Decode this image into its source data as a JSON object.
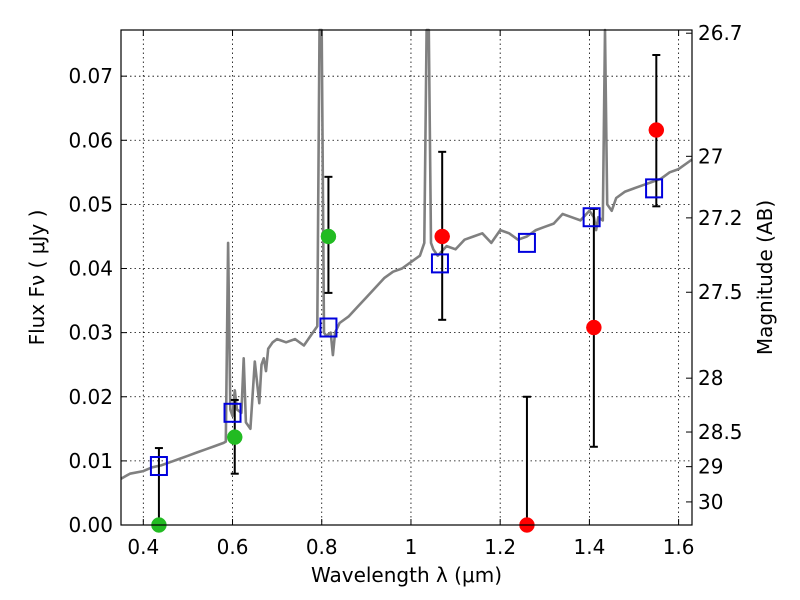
{
  "chart_data": {
    "type": "scatter",
    "title": "",
    "xlabel": "Wavelength  λ (μm)",
    "ylabel": "Flux  Fν ( μJy )",
    "y2label": "Magnitude (AB)",
    "xlim": [
      0.35,
      1.63
    ],
    "ylim": [
      0.0,
      0.0772
    ],
    "grid": true,
    "x_ticks": [
      0.4,
      0.6,
      0.8,
      1.0,
      1.2,
      1.4,
      1.6
    ],
    "x_tick_labels": [
      "0.4",
      "0.6",
      "0.8",
      "1",
      "1.2",
      "1.4",
      "1.6"
    ],
    "y_ticks": [
      0.0,
      0.01,
      0.02,
      0.03,
      0.04,
      0.05,
      0.06,
      0.07
    ],
    "y_tick_labels": [
      "0.00",
      "0.01",
      "0.02",
      "0.03",
      "0.04",
      "0.05",
      "0.06",
      "0.07"
    ],
    "y2_ticks": [
      {
        "label": "26.7",
        "flux": 0.0767
      },
      {
        "label": "27",
        "flux": 0.0575
      },
      {
        "label": "27.2",
        "flux": 0.0479
      },
      {
        "label": "27.5",
        "flux": 0.0363
      },
      {
        "label": "28",
        "flux": 0.0229
      },
      {
        "label": "28.5",
        "flux": 0.0145
      },
      {
        "label": "29",
        "flux": 0.0091
      },
      {
        "label": "30",
        "flux": 0.0036
      }
    ],
    "colors": {
      "spectrum": "#808080",
      "model": "#0000dd",
      "observed_green": "#22bb22",
      "observed_red": "#ff0000",
      "errorbar": "#000000"
    },
    "series": [
      {
        "kind": "spectrum",
        "x": [
          0.35,
          0.37,
          0.4,
          0.42,
          0.44,
          0.46,
          0.48,
          0.5,
          0.52,
          0.54,
          0.56,
          0.58,
          0.585,
          0.59,
          0.595,
          0.6,
          0.605,
          0.61,
          0.62,
          0.625,
          0.63,
          0.64,
          0.65,
          0.66,
          0.665,
          0.67,
          0.675,
          0.68,
          0.69,
          0.7,
          0.72,
          0.74,
          0.76,
          0.78,
          0.79,
          0.795,
          0.8,
          0.805,
          0.81,
          0.82,
          0.825,
          0.83,
          0.84,
          0.86,
          0.88,
          0.9,
          0.92,
          0.94,
          0.96,
          0.98,
          1.0,
          1.02,
          1.03,
          1.035,
          1.04,
          1.045,
          1.05,
          1.06,
          1.08,
          1.1,
          1.12,
          1.14,
          1.16,
          1.18,
          1.2,
          1.22,
          1.24,
          1.26,
          1.28,
          1.3,
          1.32,
          1.34,
          1.36,
          1.38,
          1.4,
          1.41,
          1.415,
          1.42,
          1.43,
          1.435,
          1.44,
          1.45,
          1.46,
          1.48,
          1.5,
          1.52,
          1.54,
          1.56,
          1.58,
          1.6,
          1.63
        ],
        "y": [
          0.0072,
          0.008,
          0.0084,
          0.009,
          0.0093,
          0.0098,
          0.0103,
          0.0108,
          0.0113,
          0.0118,
          0.0123,
          0.0128,
          0.013,
          0.044,
          0.018,
          0.017,
          0.021,
          0.018,
          0.0175,
          0.026,
          0.016,
          0.015,
          0.0255,
          0.019,
          0.025,
          0.026,
          0.024,
          0.0275,
          0.0285,
          0.029,
          0.0285,
          0.029,
          0.028,
          0.03,
          0.031,
          0.079,
          0.078,
          0.03,
          0.0295,
          0.03,
          0.0265,
          0.03,
          0.0315,
          0.0325,
          0.034,
          0.0355,
          0.037,
          0.0385,
          0.0395,
          0.04,
          0.041,
          0.042,
          0.044,
          0.079,
          0.079,
          0.044,
          0.043,
          0.042,
          0.0435,
          0.043,
          0.0445,
          0.045,
          0.0455,
          0.044,
          0.046,
          0.0455,
          0.0445,
          0.045,
          0.046,
          0.0465,
          0.047,
          0.0485,
          0.048,
          0.0475,
          0.049,
          0.048,
          0.046,
          0.048,
          0.0475,
          0.079,
          0.05,
          0.049,
          0.051,
          0.052,
          0.0525,
          0.053,
          0.0535,
          0.054,
          0.055,
          0.0555,
          0.057
        ]
      },
      {
        "kind": "model",
        "x": [
          0.435,
          0.6,
          0.815,
          1.065,
          1.26,
          1.405,
          1.545
        ],
        "y": [
          0.0092,
          0.0175,
          0.0308,
          0.0408,
          0.044,
          0.048,
          0.0525
        ]
      },
      {
        "kind": "observed",
        "points": [
          {
            "x": 0.435,
            "y": 0.0,
            "err_low": 0.0,
            "err_high": 0.012,
            "color": "green"
          },
          {
            "x": 0.605,
            "y": 0.0137,
            "err_low": 0.008,
            "err_high": 0.0195,
            "color": "green"
          },
          {
            "x": 0.815,
            "y": 0.045,
            "err_low": 0.0362,
            "err_high": 0.0543,
            "color": "green"
          },
          {
            "x": 1.07,
            "y": 0.045,
            "err_low": 0.032,
            "err_high": 0.0582,
            "color": "red"
          },
          {
            "x": 1.26,
            "y": 0.0,
            "err_low": 0.0,
            "err_high": 0.02,
            "color": "red"
          },
          {
            "x": 1.41,
            "y": 0.0308,
            "err_low": 0.0122,
            "err_high": 0.0493,
            "color": "red"
          },
          {
            "x": 1.55,
            "y": 0.0616,
            "err_low": 0.0497,
            "err_high": 0.0733,
            "color": "red"
          }
        ]
      }
    ]
  }
}
